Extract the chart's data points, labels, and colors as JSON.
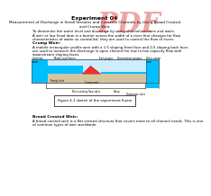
{
  "background_color": "#ffffff",
  "title": "Experiment 04",
  "subtitle_line1": "Measurement of Discharge in Small Streams and Concrete Channels by Using Broad Crested",
  "subtitle_line2": "and Crump Weir.",
  "body_text1": "To determine the water level and discharge by using channel sections and weirs.",
  "body_text2a": "A weir or low head dam is a barrier across the width of a river that changes for flow",
  "body_text2b": "characteristics of water as controlled. they are used to control the flow of rivers.",
  "crump_header": "Crump Weir:",
  "crump_text1": "A mobile rectangular profile weir with a 1:5 sloping front face and 1:5 sloping back face.",
  "crump_text2": "are used to measure the discharge in open channel for low to low capacity flow with",
  "crump_text3": "downstream sloping faces.",
  "figure_caption": "Figure 4.1 sketch of the experiment flume",
  "broad_header": "Broad Crested Weir:",
  "broad_text1": "A broad crested weir is a flat crested structure that covers most to all channel needs. This is one",
  "broad_text2": "of common types of weir worldwide.",
  "water_color": "#00bfff",
  "water_light": "#cceeff",
  "weir_color": "#ee3333",
  "sand_color": "#d4c4a0",
  "channel_border": "#444444",
  "text_color": "#000000",
  "pdf_color": "#cc0000",
  "title_fs": 4.5,
  "sub_fs": 3.0,
  "body_fs": 2.8,
  "header_fs": 3.2,
  "label_fs": 1.9,
  "caption_fs": 2.8
}
